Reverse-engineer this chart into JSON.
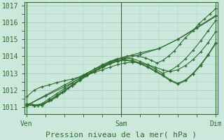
{
  "bg_color": "#cce8dc",
  "grid_color": "#aacfbf",
  "line_color": "#2d6e2d",
  "marker_color": "#2d6e2d",
  "xlabel": "Pression niveau de la mer( hPa )",
  "xlabel_fontsize": 8,
  "yticks": [
    1011,
    1012,
    1013,
    1014,
    1015,
    1016,
    1017
  ],
  "xtick_labels": [
    "Ven",
    "Sam",
    "Dim"
  ],
  "xtick_positions": [
    0,
    0.5,
    1.0
  ],
  "ylim": [
    1010.6,
    1017.2
  ],
  "xlim": [
    -0.01,
    1.01
  ],
  "series": [
    {
      "x": [
        0.0,
        0.03,
        0.06,
        0.09,
        0.13,
        0.16,
        0.19,
        0.22,
        0.25,
        0.28,
        0.31,
        0.34,
        0.38,
        0.41,
        0.44,
        0.47,
        0.5,
        0.53,
        0.56,
        0.59,
        0.63,
        0.66,
        0.69,
        0.72,
        0.75,
        0.78,
        0.81,
        0.84,
        0.88,
        0.91,
        0.94,
        0.97,
        1.0
      ],
      "y": [
        1011.2,
        1011.15,
        1011.1,
        1011.2,
        1011.4,
        1011.6,
        1011.85,
        1012.1,
        1012.35,
        1012.6,
        1012.85,
        1013.05,
        1013.25,
        1013.45,
        1013.65,
        1013.8,
        1013.9,
        1014.0,
        1014.05,
        1014.0,
        1013.9,
        1013.75,
        1013.6,
        1013.75,
        1014.0,
        1014.3,
        1014.7,
        1015.1,
        1015.5,
        1015.9,
        1016.2,
        1016.5,
        1016.8
      ]
    },
    {
      "x": [
        0.0,
        0.04,
        0.08,
        0.12,
        0.16,
        0.2,
        0.24,
        0.28,
        0.32,
        0.36,
        0.4,
        0.44,
        0.48,
        0.52,
        0.56,
        0.6,
        0.64,
        0.68,
        0.72,
        0.76,
        0.8,
        0.84,
        0.88,
        0.92,
        0.96,
        1.0
      ],
      "y": [
        1011.1,
        1011.1,
        1011.2,
        1011.5,
        1011.8,
        1012.1,
        1012.4,
        1012.7,
        1013.0,
        1013.25,
        1013.5,
        1013.7,
        1013.85,
        1013.9,
        1013.85,
        1013.7,
        1013.5,
        1013.25,
        1013.0,
        1013.15,
        1013.45,
        1013.85,
        1014.35,
        1014.9,
        1015.5,
        1016.1
      ]
    },
    {
      "x": [
        0.0,
        0.04,
        0.08,
        0.12,
        0.16,
        0.2,
        0.24,
        0.28,
        0.32,
        0.36,
        0.4,
        0.44,
        0.48,
        0.52,
        0.56,
        0.6,
        0.64,
        0.68,
        0.72,
        0.76,
        0.8,
        0.84,
        0.88,
        0.92,
        0.96,
        1.0
      ],
      "y": [
        1011.1,
        1011.1,
        1011.15,
        1011.4,
        1011.7,
        1012.0,
        1012.3,
        1012.6,
        1012.9,
        1013.15,
        1013.4,
        1013.6,
        1013.75,
        1013.8,
        1013.75,
        1013.6,
        1013.4,
        1013.15,
        1012.9,
        1012.6,
        1012.4,
        1012.6,
        1013.0,
        1013.5,
        1014.1,
        1014.8
      ]
    },
    {
      "x": [
        0.0,
        0.04,
        0.08,
        0.12,
        0.16,
        0.2,
        0.24,
        0.28,
        0.32,
        0.36,
        0.4,
        0.44,
        0.48,
        0.52,
        0.56,
        0.6,
        0.64,
        0.68,
        0.72,
        0.76,
        0.8,
        0.84,
        0.88,
        0.92,
        0.96,
        1.0
      ],
      "y": [
        1011.15,
        1011.1,
        1011.1,
        1011.35,
        1011.65,
        1011.95,
        1012.25,
        1012.55,
        1012.85,
        1013.1,
        1013.35,
        1013.55,
        1013.7,
        1013.75,
        1013.7,
        1013.55,
        1013.35,
        1013.1,
        1012.85,
        1012.55,
        1012.35,
        1012.55,
        1012.95,
        1013.45,
        1014.05,
        1014.75
      ]
    },
    {
      "x": [
        0.0,
        0.1,
        0.2,
        0.3,
        0.4,
        0.5,
        0.6,
        0.7,
        0.8,
        0.9,
        1.0
      ],
      "y": [
        1011.1,
        1011.7,
        1012.3,
        1012.9,
        1013.45,
        1013.9,
        1014.2,
        1014.45,
        1015.0,
        1015.7,
        1016.4
      ]
    },
    {
      "x": [
        0.0,
        0.1,
        0.2,
        0.3,
        0.4,
        0.5,
        0.6,
        0.7,
        0.8,
        0.9,
        1.0
      ],
      "y": [
        1011.1,
        1011.65,
        1012.2,
        1012.8,
        1013.35,
        1013.8,
        1014.1,
        1014.45,
        1015.0,
        1015.65,
        1016.35
      ]
    },
    {
      "x": [
        0.0,
        0.04,
        0.08,
        0.12,
        0.16,
        0.2,
        0.24,
        0.28,
        0.32,
        0.36,
        0.4,
        0.44,
        0.48,
        0.52,
        0.56,
        0.6,
        0.64,
        0.68,
        0.72,
        0.76,
        0.8,
        0.84,
        0.88,
        0.92,
        0.96,
        1.0
      ],
      "y": [
        1011.6,
        1012.0,
        1012.2,
        1012.3,
        1012.45,
        1012.55,
        1012.65,
        1012.78,
        1012.92,
        1013.05,
        1013.2,
        1013.35,
        1013.5,
        1013.6,
        1013.65,
        1013.6,
        1013.5,
        1013.35,
        1013.2,
        1013.1,
        1013.2,
        1013.45,
        1013.8,
        1014.25,
        1014.8,
        1015.45
      ]
    }
  ]
}
